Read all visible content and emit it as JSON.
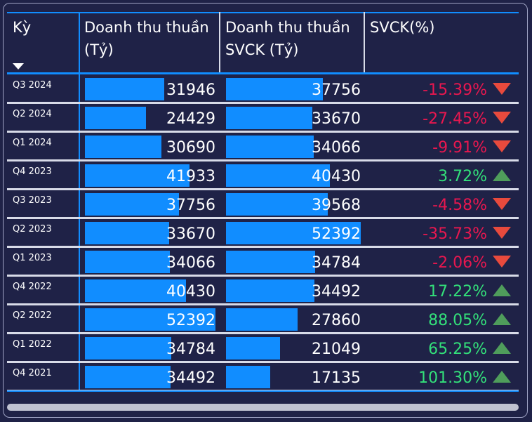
{
  "header": {
    "col_period": "Kỳ",
    "col_revenue_l1": "Doanh thu thuần",
    "col_revenue_l2": "(Tỷ)",
    "col_revenue_prev_l1": "Doanh thu thuần",
    "col_revenue_prev_l2": "SVCK (Tỷ)",
    "col_yoy": "SVCK(%)"
  },
  "colors": {
    "accent": "#118dff",
    "negative": "#e8174f",
    "positive": "#33e07a",
    "background": "#1f2247"
  },
  "scale_max": 52392,
  "rows": [
    {
      "period": "Q3 2024",
      "revenue": 31946,
      "revenue_label": "31946",
      "prev": 37756,
      "prev_label": "37756",
      "yoy": "-15.39%",
      "trend": "down"
    },
    {
      "period": "Q2 2024",
      "revenue": 24429,
      "revenue_label": "24429",
      "prev": 33670,
      "prev_label": "33670",
      "yoy": "-27.45%",
      "trend": "down"
    },
    {
      "period": "Q1 2024",
      "revenue": 30690,
      "revenue_label": "30690",
      "prev": 34066,
      "prev_label": "34066",
      "yoy": "-9.91%",
      "trend": "down"
    },
    {
      "period": "Q4 2023",
      "revenue": 41933,
      "revenue_label": "41933",
      "prev": 40430,
      "prev_label": "40430",
      "yoy": "3.72%",
      "trend": "up"
    },
    {
      "period": "Q3 2023",
      "revenue": 37756,
      "revenue_label": "37756",
      "prev": 39568,
      "prev_label": "39568",
      "yoy": "-4.58%",
      "trend": "down"
    },
    {
      "period": "Q2 2023",
      "revenue": 33670,
      "revenue_label": "33670",
      "prev": 52392,
      "prev_label": "52392",
      "yoy": "-35.73%",
      "trend": "down"
    },
    {
      "period": "Q1 2023",
      "revenue": 34066,
      "revenue_label": "34066",
      "prev": 34784,
      "prev_label": "34784",
      "yoy": "-2.06%",
      "trend": "down"
    },
    {
      "period": "Q4 2022",
      "revenue": 40430,
      "revenue_label": "40430",
      "prev": 34492,
      "prev_label": "34492",
      "yoy": "17.22%",
      "trend": "up"
    },
    {
      "period": "Q2 2022",
      "revenue": 52392,
      "revenue_label": "52392",
      "prev": 27860,
      "prev_label": "27860",
      "yoy": "88.05%",
      "trend": "up"
    },
    {
      "period": "Q1 2022",
      "revenue": 34784,
      "revenue_label": "34784",
      "prev": 21049,
      "prev_label": "21049",
      "yoy": "65.25%",
      "trend": "up"
    },
    {
      "period": "Q4 2021",
      "revenue": 34492,
      "revenue_label": "34492",
      "prev": 17135,
      "prev_label": "17135",
      "yoy": "101.30%",
      "trend": "up"
    }
  ]
}
